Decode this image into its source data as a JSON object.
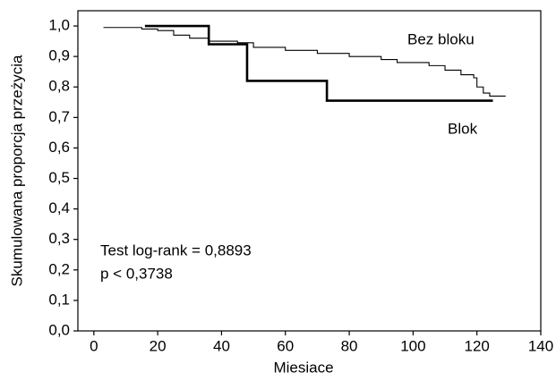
{
  "chart_data": {
    "type": "step",
    "x_label": "Miesiace",
    "y_label": "Skumulowana proporcja przeżycia",
    "xlim": [
      -5,
      140
    ],
    "ylim": [
      0,
      1.05
    ],
    "xticks": [
      0,
      20,
      40,
      60,
      80,
      100,
      120,
      140
    ],
    "yticks": [
      {
        "value": 0,
        "label": "0,0"
      },
      {
        "value": 0.1,
        "label": "0,1"
      },
      {
        "value": 0.2,
        "label": "0,2"
      },
      {
        "value": 0.3,
        "label": "0,3"
      },
      {
        "value": 0.4,
        "label": "0,4"
      },
      {
        "value": 0.5,
        "label": "0,5"
      },
      {
        "value": 0.6,
        "label": "0,6"
      },
      {
        "value": 0.7,
        "label": "0,7"
      },
      {
        "value": 0.8,
        "label": "0,8"
      },
      {
        "value": 0.9,
        "label": "0,9"
      },
      {
        "value": 1.0,
        "label": "1,0"
      }
    ],
    "series": [
      {
        "name": "Bez bloku",
        "color": "#000000",
        "x": [
          3,
          15,
          20,
          25,
          30,
          36,
          45,
          50,
          60,
          70,
          80,
          90,
          95,
          105,
          110,
          115,
          119,
          120,
          122,
          124,
          129
        ],
        "values": [
          0.995,
          0.99,
          0.985,
          0.97,
          0.96,
          0.95,
          0.945,
          0.93,
          0.92,
          0.91,
          0.9,
          0.89,
          0.88,
          0.87,
          0.855,
          0.84,
          0.83,
          0.8,
          0.78,
          0.77,
          0.77
        ]
      },
      {
        "name": "Blok",
        "color": "#000000",
        "x": [
          16,
          36,
          48,
          73,
          125
        ],
        "values": [
          1.0,
          0.94,
          0.82,
          0.755,
          0.755
        ]
      }
    ],
    "annotations": [
      "Test log-rank = 0,8893",
      "p < 0,3738"
    ]
  }
}
